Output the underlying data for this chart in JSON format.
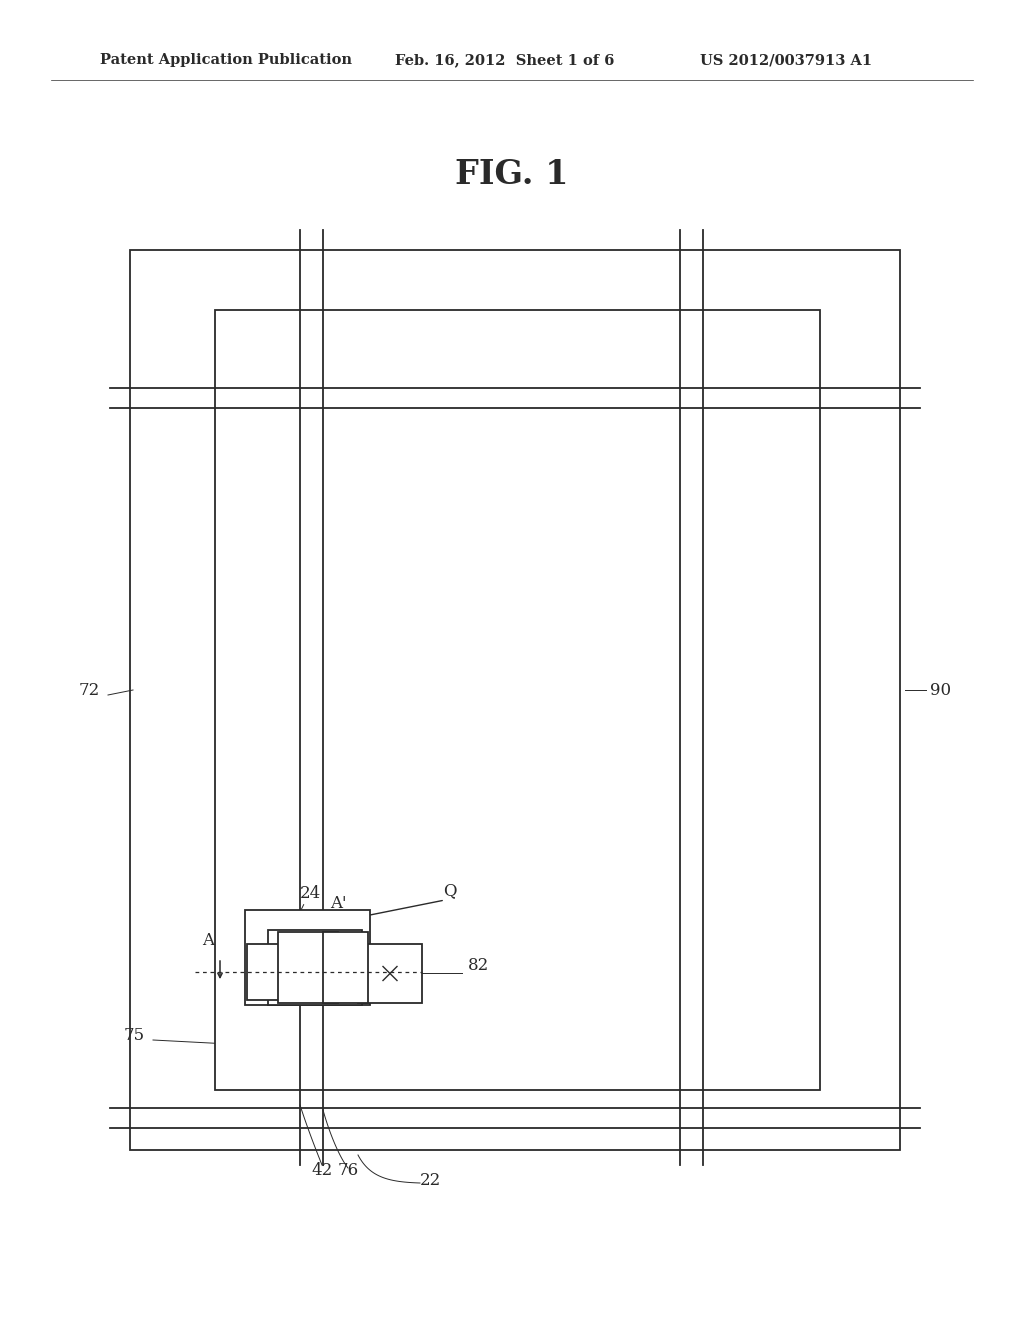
{
  "title": "FIG. 1",
  "header_left": "Patent Application Publication",
  "header_mid": "Feb. 16, 2012  Sheet 1 of 6",
  "header_right": "US 2012/0037913 A1",
  "bg_color": "#ffffff",
  "line_color": "#2a2a2a",
  "fig_width": 10.24,
  "fig_height": 13.2,
  "header_font_size": 10.5,
  "title_font_size": 24,
  "label_font_size": 12
}
